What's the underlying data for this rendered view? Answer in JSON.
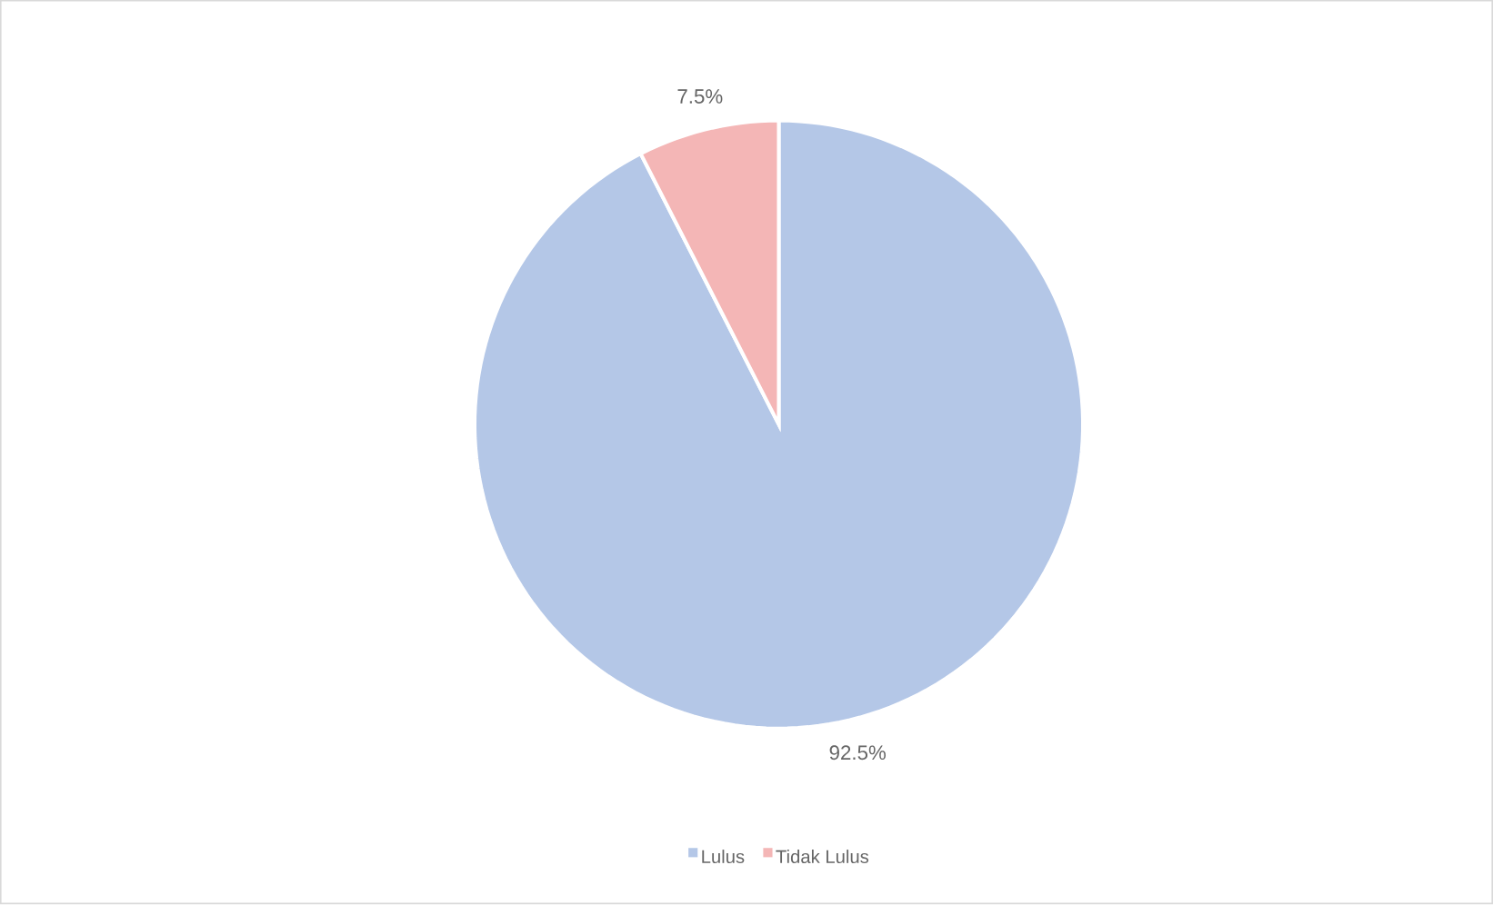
{
  "chart_data": {
    "type": "pie",
    "categories": [
      "Lulus",
      "Tidak Lulus"
    ],
    "values": [
      92.5,
      7.5
    ],
    "colors": [
      "#b4c7e7",
      "#f4b6b6"
    ],
    "value_labels": [
      "92.5%",
      "7.5%"
    ],
    "legend": "bottom"
  }
}
